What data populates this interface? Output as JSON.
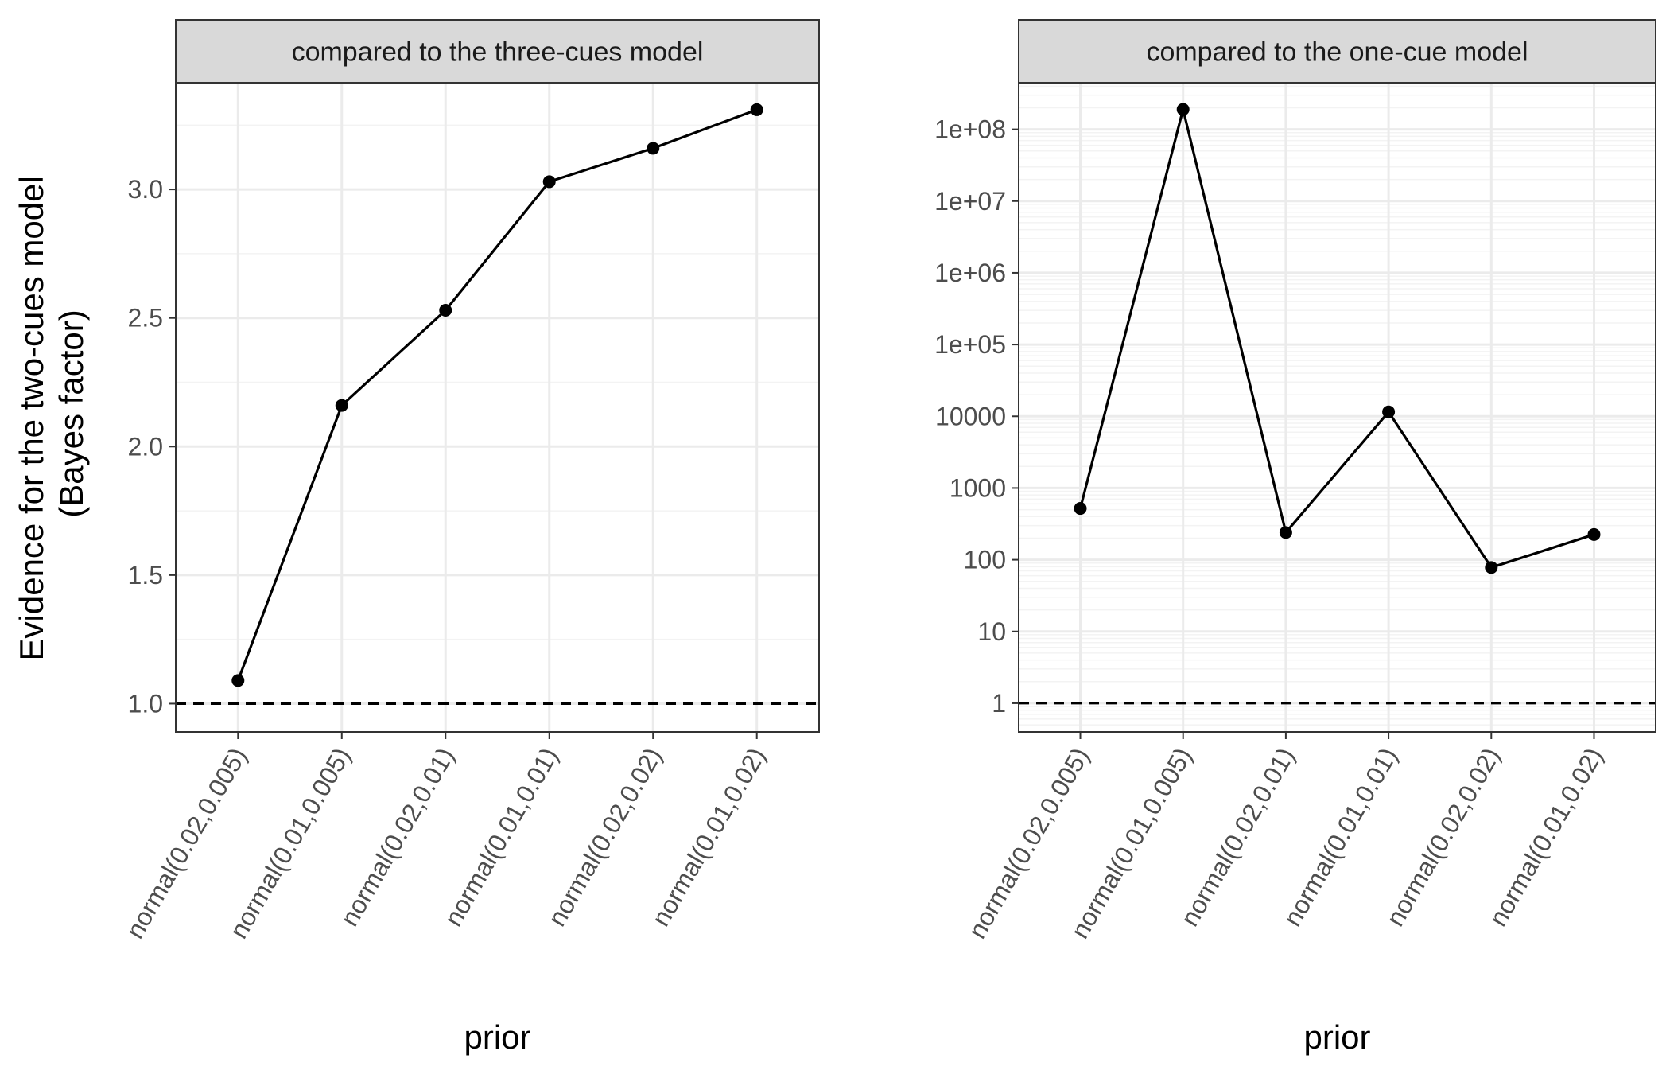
{
  "figure": {
    "y_axis_title_line1": "Evidence for the two-cues model",
    "y_axis_title_line2": "(Bayes factor)"
  },
  "colors": {
    "line": "#000000",
    "grid_major": "#ebebeb",
    "grid_minor": "#f3f3f3",
    "strip_fill": "#d9d9d9",
    "panel_border": "#333333",
    "tick_label": "#4d4d4d",
    "reference_line": "#000000"
  },
  "chart_data": [
    {
      "type": "line",
      "title": "compared to the three-cues model",
      "xlabel": "prior",
      "ylabel": "Evidence for the two-cues model (Bayes factor)",
      "y_scale": "linear",
      "categories": [
        "normal(0.02,0.005)",
        "normal(0.01,0.005)",
        "normal(0.02,0.01)",
        "normal(0.01,0.01)",
        "normal(0.02,0.02)",
        "normal(0.01,0.02)"
      ],
      "values": [
        1.09,
        2.16,
        2.53,
        3.03,
        3.16,
        3.31
      ],
      "ylim": [
        0.89,
        3.415
      ],
      "y_ticks": [
        1.0,
        1.5,
        2.0,
        2.5,
        3.0
      ],
      "y_tick_labels": [
        "1.0",
        "1.5",
        "2.0",
        "2.5",
        "3.0"
      ],
      "reference_line": 1,
      "grid": true,
      "legend": "none"
    },
    {
      "type": "line",
      "title": "compared to the one-cue model",
      "xlabel": "prior",
      "ylabel": "Evidence for the two-cues model (Bayes factor)",
      "y_scale": "log10",
      "categories": [
        "normal(0.02,0.005)",
        "normal(0.01,0.005)",
        "normal(0.02,0.01)",
        "normal(0.01,0.01)",
        "normal(0.02,0.02)",
        "normal(0.01,0.02)"
      ],
      "values": [
        520,
        190000000,
        240,
        11500,
        78,
        225
      ],
      "ylim": [
        0.398,
        446700000
      ],
      "y_ticks": [
        1,
        10,
        100,
        1000,
        10000,
        100000,
        1000000,
        10000000,
        100000000
      ],
      "y_tick_labels": [
        "1",
        "10",
        "100",
        "1000",
        "10000",
        "1e+05",
        "1e+06",
        "1e+07",
        "1e+08"
      ],
      "reference_line": 1,
      "grid": true,
      "legend": "none"
    }
  ]
}
